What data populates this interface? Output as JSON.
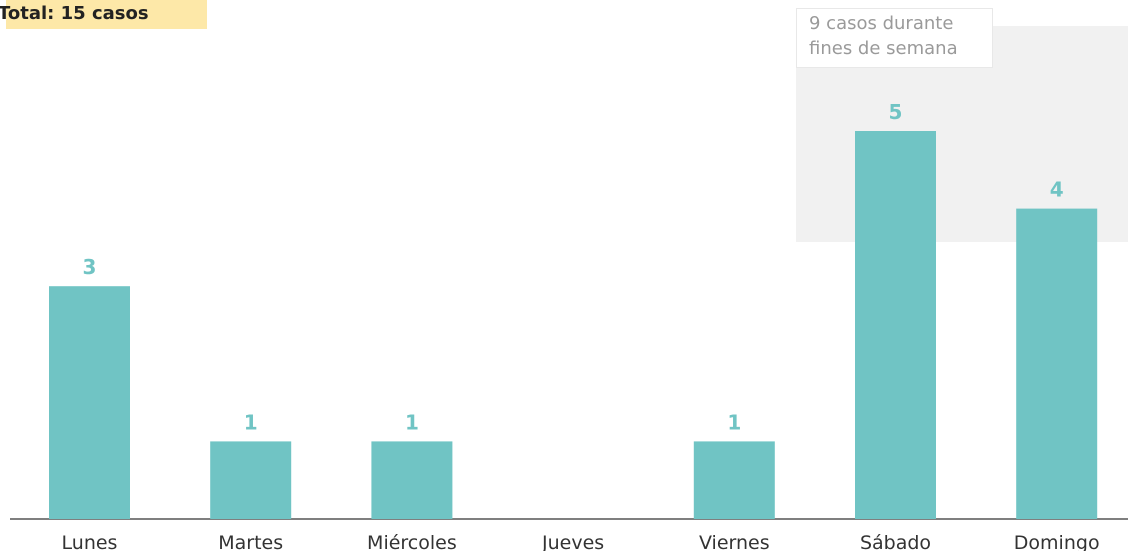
{
  "chart_data": {
    "type": "bar",
    "categories": [
      "Lunes",
      "Martes",
      "Miércoles",
      "Jueves",
      "Viernes",
      "Sábado",
      "Domingo"
    ],
    "values": [
      3,
      1,
      1,
      0,
      1,
      5,
      4
    ],
    "labels_shown": [
      "3",
      "1",
      "1",
      "",
      "1",
      "5",
      "4"
    ],
    "ylim": [
      0,
      5
    ],
    "grid": false,
    "bar_color": "#70c4c4",
    "highlight_color": "#f1f1f1"
  },
  "badge": {
    "text": "Total: 15 casos",
    "color": "#fde8a8"
  },
  "annotation": {
    "text": "9 casos durante fines de semana"
  }
}
